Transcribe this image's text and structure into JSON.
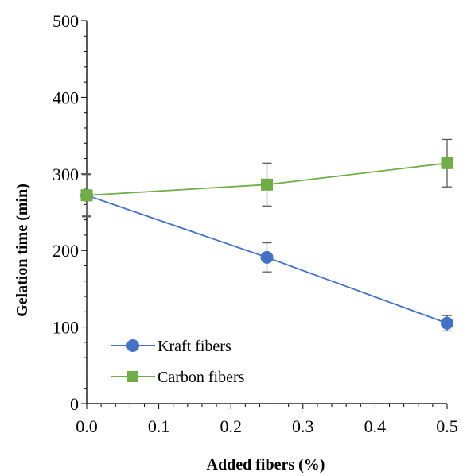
{
  "chart_data": {
    "type": "line",
    "xlabel": "Added fibers (%)",
    "ylabel": "Gelation time (min)",
    "xlim": [
      0.0,
      0.5
    ],
    "ylim": [
      0,
      500
    ],
    "x_ticks": [
      "0.0",
      "0.1",
      "0.2",
      "0.3",
      "0.4",
      "0.5"
    ],
    "y_ticks": [
      "0",
      "100",
      "200",
      "300",
      "400",
      "500"
    ],
    "grid": false,
    "legend_position": "bottom-left",
    "series": [
      {
        "name": "Kraft fibers",
        "color": "#4472C4",
        "marker": "circle",
        "x": [
          0.0,
          0.25,
          0.5
        ],
        "y": [
          272,
          191,
          105
        ],
        "error": [
          28,
          19,
          10
        ]
      },
      {
        "name": "Carbon fibers",
        "color": "#70AD47",
        "marker": "square",
        "x": [
          0.0,
          0.25,
          0.5
        ],
        "y": [
          272,
          286,
          314
        ],
        "error": [
          27,
          28,
          31
        ]
      }
    ]
  }
}
